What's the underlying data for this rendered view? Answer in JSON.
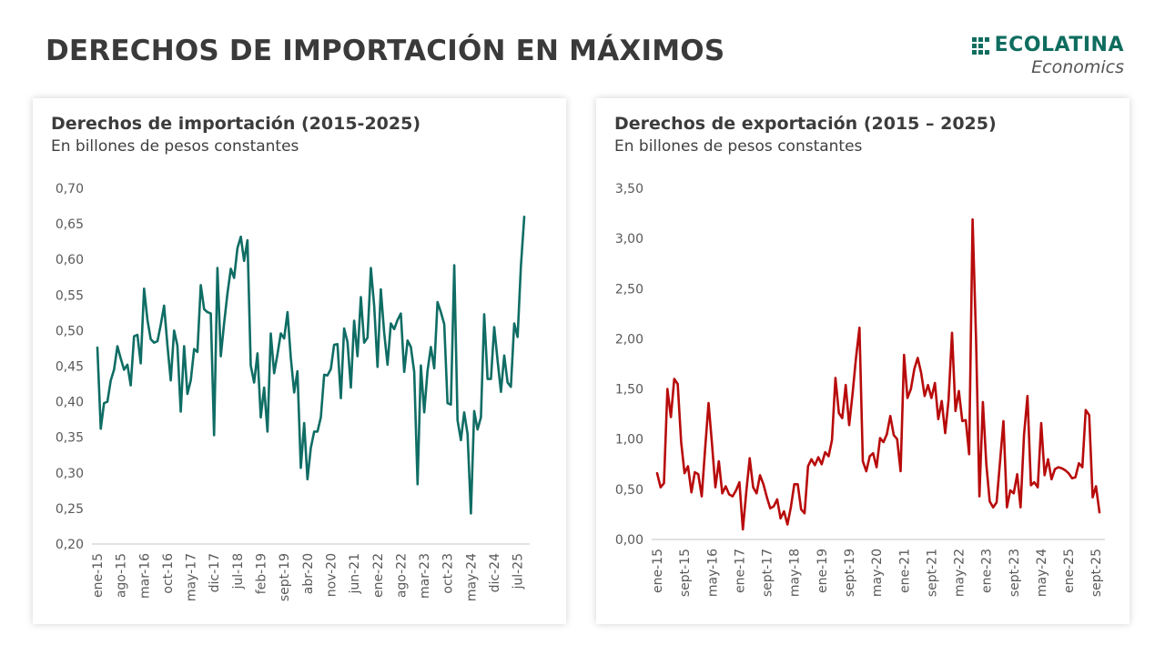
{
  "page": {
    "title": "DERECHOS DE IMPORTACIÓN EN MÁXIMOS",
    "logo": {
      "name": "ECOLATINA",
      "sub": "Economics",
      "color": "#0f6d5f"
    }
  },
  "chart_data": [
    {
      "type": "line",
      "title": "Derechos de importación (2015-2025)",
      "subtitle": "En billones de pesos constantes",
      "xlabel": "",
      "ylabel": "",
      "ylim": [
        0.2,
        0.7
      ],
      "yticks": [
        "0,20",
        "0,25",
        "0,30",
        "0,35",
        "0,40",
        "0,45",
        "0,50",
        "0,55",
        "0,60",
        "0,65",
        "0,70"
      ],
      "ytick_values": [
        0.2,
        0.25,
        0.3,
        0.35,
        0.4,
        0.45,
        0.5,
        0.55,
        0.6,
        0.65,
        0.7
      ],
      "xtick_labels": [
        "ene-15",
        "ago-15",
        "mar-16",
        "oct-16",
        "may-17",
        "dic-17",
        "jul-18",
        "feb-19",
        "sept-19",
        "abr-20",
        "nov-20",
        "jun-21",
        "ene-22",
        "ago-22",
        "mar-23",
        "oct-23",
        "may-24",
        "dic-24",
        "jul-25"
      ],
      "xtick_every": 7,
      "grid": false,
      "legend": "none",
      "series": [
        {
          "name": "Derechos de importación",
          "color": "#0f6d64",
          "start": "ene-15",
          "values": [
            0.476,
            0.362,
            0.398,
            0.4,
            0.43,
            0.445,
            0.478,
            0.461,
            0.445,
            0.452,
            0.423,
            0.492,
            0.494,
            0.454,
            0.559,
            0.515,
            0.488,
            0.483,
            0.485,
            0.508,
            0.535,
            0.48,
            0.43,
            0.5,
            0.479,
            0.386,
            0.478,
            0.411,
            0.43,
            0.474,
            0.47,
            0.564,
            0.53,
            0.526,
            0.524,
            0.353,
            0.588,
            0.464,
            0.51,
            0.552,
            0.587,
            0.574,
            0.616,
            0.632,
            0.598,
            0.627,
            0.451,
            0.427,
            0.468,
            0.378,
            0.42,
            0.358,
            0.496,
            0.44,
            0.467,
            0.496,
            0.489,
            0.526,
            0.462,
            0.413,
            0.443,
            0.307,
            0.37,
            0.291,
            0.335,
            0.358,
            0.358,
            0.378,
            0.438,
            0.437,
            0.446,
            0.48,
            0.481,
            0.405,
            0.503,
            0.484,
            0.42,
            0.514,
            0.464,
            0.547,
            0.483,
            0.49,
            0.588,
            0.535,
            0.449,
            0.558,
            0.497,
            0.452,
            0.51,
            0.502,
            0.515,
            0.524,
            0.442,
            0.486,
            0.477,
            0.442,
            0.284,
            0.451,
            0.385,
            0.443,
            0.477,
            0.447,
            0.54,
            0.526,
            0.509,
            0.398,
            0.396,
            0.592,
            0.374,
            0.346,
            0.385,
            0.355,
            0.243,
            0.387,
            0.361,
            0.378,
            0.523,
            0.432,
            0.432,
            0.505,
            0.458,
            0.414,
            0.465,
            0.427,
            0.421,
            0.51,
            0.491,
            0.59,
            0.66
          ]
        }
      ]
    },
    {
      "type": "line",
      "title": "Derechos de exportación (2015 – 2025)",
      "subtitle": "En billones de pesos constantes",
      "xlabel": "",
      "ylabel": "",
      "ylim": [
        0.0,
        3.5
      ],
      "yticks": [
        "0,00",
        "0,50",
        "1,00",
        "1,50",
        "2,00",
        "2,50",
        "3,00",
        "3,50"
      ],
      "ytick_values": [
        0,
        0.5,
        1.0,
        1.5,
        2.0,
        2.5,
        3.0,
        3.5
      ],
      "xtick_labels": [
        "ene-15",
        "sept-15",
        "may-16",
        "ene-17",
        "sept-17",
        "may-18",
        "ene-19",
        "sept-19",
        "may-20",
        "ene-21",
        "sept-21",
        "may-22",
        "ene-23",
        "sept-23",
        "may-24",
        "ene-25",
        "sept-25"
      ],
      "xtick_every": 8,
      "grid": false,
      "legend": "none",
      "series": [
        {
          "name": "Derechos de exportación",
          "color": "#b80b0b",
          "start": "ene-15",
          "values": [
            0.66,
            0.52,
            0.56,
            1.5,
            1.22,
            1.6,
            1.55,
            0.97,
            0.66,
            0.73,
            0.47,
            0.67,
            0.65,
            0.43,
            0.9,
            1.36,
            0.95,
            0.52,
            0.78,
            0.46,
            0.53,
            0.45,
            0.43,
            0.49,
            0.57,
            0.1,
            0.48,
            0.81,
            0.52,
            0.46,
            0.64,
            0.55,
            0.42,
            0.31,
            0.33,
            0.4,
            0.21,
            0.28,
            0.15,
            0.32,
            0.55,
            0.55,
            0.3,
            0.26,
            0.73,
            0.8,
            0.74,
            0.82,
            0.75,
            0.87,
            0.83,
            0.99,
            1.61,
            1.26,
            1.21,
            1.54,
            1.14,
            1.45,
            1.81,
            2.11,
            0.78,
            0.68,
            0.83,
            0.86,
            0.72,
            1.01,
            0.97,
            1.05,
            1.23,
            1.04,
            1.0,
            0.68,
            1.84,
            1.41,
            1.5,
            1.7,
            1.81,
            1.66,
            1.43,
            1.54,
            1.41,
            1.56,
            1.2,
            1.38,
            1.06,
            1.39,
            2.06,
            1.28,
            1.48,
            1.18,
            1.19,
            0.85,
            3.19,
            2.0,
            0.43,
            1.37,
            0.75,
            0.38,
            0.32,
            0.37,
            0.77,
            1.18,
            0.32,
            0.49,
            0.46,
            0.65,
            0.32,
            1.04,
            1.43,
            0.54,
            0.57,
            0.52,
            1.16,
            0.64,
            0.8,
            0.6,
            0.7,
            0.72,
            0.71,
            0.69,
            0.66,
            0.61,
            0.62,
            0.76,
            0.72,
            1.29,
            1.24,
            0.42,
            0.53,
            0.27
          ]
        }
      ]
    }
  ]
}
